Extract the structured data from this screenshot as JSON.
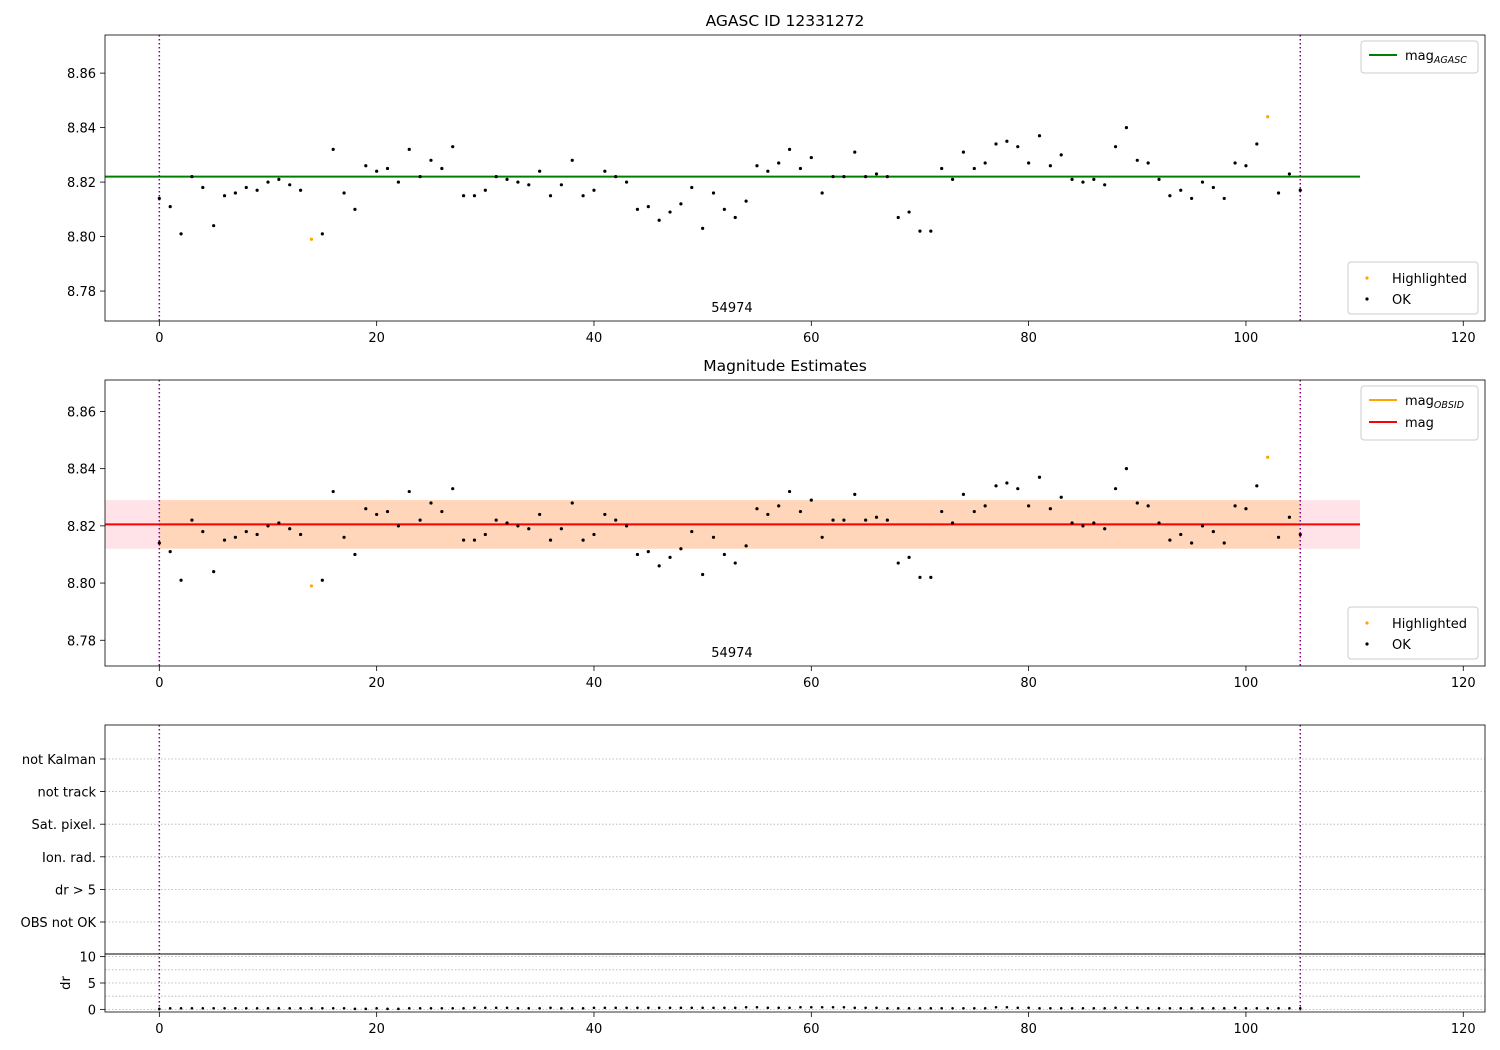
{
  "chart_data": [
    {
      "type": "scatter",
      "title": "AGASC ID 12331272",
      "xlim": [
        -5,
        122
      ],
      "ylim": [
        8.769,
        8.874
      ],
      "xticks": [
        0,
        20,
        40,
        60,
        80,
        100,
        120
      ],
      "yticks": [
        8.78,
        8.8,
        8.82,
        8.84,
        8.86
      ],
      "annotation": "54974",
      "obs_boundaries": [
        0,
        105
      ],
      "lines": [
        {
          "name_main": "mag",
          "name_sub": "AGASC",
          "y": 8.822,
          "x_range": [
            -5,
            110.5
          ],
          "color": "#008000"
        }
      ],
      "legend_points": [
        {
          "name": "Highlighted",
          "color": "#ffa500"
        },
        {
          "name": "OK",
          "color": "#000000"
        }
      ],
      "series": [
        {
          "name": "OK",
          "color": "#000000",
          "x": [
            0,
            1,
            2,
            3,
            4,
            5,
            6,
            7,
            8,
            9,
            10,
            11,
            12,
            13,
            15,
            16,
            17,
            18,
            19,
            20,
            21,
            22,
            23,
            24,
            25,
            26,
            27,
            28,
            29,
            30,
            31,
            32,
            33,
            34,
            35,
            36,
            37,
            38,
            39,
            40,
            41,
            42,
            43,
            44,
            45,
            46,
            47,
            48,
            49,
            50,
            51,
            52,
            53,
            54,
            55,
            56,
            57,
            58,
            59,
            60,
            61,
            62,
            63,
            64,
            65,
            66,
            67,
            68,
            69,
            70,
            71,
            72,
            73,
            74,
            75,
            76,
            77,
            78,
            79,
            80,
            81,
            82,
            83,
            84,
            85,
            86,
            87,
            88,
            89,
            90,
            91,
            92,
            93,
            94,
            95,
            96,
            97,
            98,
            99,
            100,
            101,
            103,
            104,
            105
          ],
          "y": [
            8.814,
            8.811,
            8.801,
            8.822,
            8.818,
            8.804,
            8.815,
            8.816,
            8.818,
            8.817,
            8.82,
            8.821,
            8.819,
            8.817,
            8.801,
            8.832,
            8.816,
            8.81,
            8.826,
            8.824,
            8.825,
            8.82,
            8.832,
            8.822,
            8.828,
            8.825,
            8.833,
            8.815,
            8.815,
            8.817,
            8.822,
            8.821,
            8.82,
            8.819,
            8.824,
            8.815,
            8.819,
            8.828,
            8.815,
            8.817,
            8.824,
            8.822,
            8.82,
            8.81,
            8.811,
            8.806,
            8.809,
            8.812,
            8.818,
            8.803,
            8.816,
            8.81,
            8.807,
            8.813,
            8.826,
            8.824,
            8.827,
            8.832,
            8.825,
            8.829,
            8.816,
            8.822,
            8.822,
            8.831,
            8.822,
            8.823,
            8.822,
            8.807,
            8.809,
            8.802,
            8.802,
            8.825,
            8.821,
            8.831,
            8.825,
            8.827,
            8.834,
            8.835,
            8.833,
            8.827,
            8.837,
            8.826,
            8.83,
            8.821,
            8.82,
            8.821,
            8.819,
            8.833,
            8.84,
            8.828,
            8.827,
            8.821,
            8.815,
            8.817,
            8.814,
            8.82,
            8.818,
            8.814,
            8.827,
            8.826,
            8.834,
            8.816,
            8.823,
            8.817
          ]
        },
        {
          "name": "Highlighted",
          "color": "#ffa500",
          "x": [
            14,
            102
          ],
          "y": [
            8.799,
            8.844
          ]
        }
      ]
    },
    {
      "type": "scatter",
      "title": "Magnitude Estimates",
      "xlim": [
        -5,
        122
      ],
      "ylim": [
        8.771,
        8.871
      ],
      "xticks": [
        0,
        20,
        40,
        60,
        80,
        100,
        120
      ],
      "yticks": [
        8.78,
        8.8,
        8.82,
        8.84,
        8.86
      ],
      "annotation": "54974",
      "obs_boundaries": [
        0,
        105
      ],
      "bands": [
        {
          "y0": 8.812,
          "y1": 8.829,
          "x_range": [
            -5,
            110.5
          ],
          "color": "#ffc0cb",
          "opacity": 0.45
        },
        {
          "y0": 8.812,
          "y1": 8.829,
          "x_range": [
            0,
            105
          ],
          "color": "#ffa500",
          "opacity": 0.2
        }
      ],
      "lines": [
        {
          "name_main": "mag",
          "name_sub": "OBSID",
          "y": 8.8205,
          "x_range": [
            0,
            105
          ],
          "color": "#ffa500"
        },
        {
          "name_main": "mag",
          "name_sub": "",
          "y": 8.8205,
          "x_range": [
            -5,
            110.5
          ],
          "color": "#ff0000"
        }
      ],
      "legend_points": [
        {
          "name": "Highlighted",
          "color": "#ffa500"
        },
        {
          "name": "OK",
          "color": "#000000"
        }
      ],
      "series": [
        {
          "name": "OK",
          "color": "#000000",
          "x": [
            0,
            1,
            2,
            3,
            4,
            5,
            6,
            7,
            8,
            9,
            10,
            11,
            12,
            13,
            15,
            16,
            17,
            18,
            19,
            20,
            21,
            22,
            23,
            24,
            25,
            26,
            27,
            28,
            29,
            30,
            31,
            32,
            33,
            34,
            35,
            36,
            37,
            38,
            39,
            40,
            41,
            42,
            43,
            44,
            45,
            46,
            47,
            48,
            49,
            50,
            51,
            52,
            53,
            54,
            55,
            56,
            57,
            58,
            59,
            60,
            61,
            62,
            63,
            64,
            65,
            66,
            67,
            68,
            69,
            70,
            71,
            72,
            73,
            74,
            75,
            76,
            77,
            78,
            79,
            80,
            81,
            82,
            83,
            84,
            85,
            86,
            87,
            88,
            89,
            90,
            91,
            92,
            93,
            94,
            95,
            96,
            97,
            98,
            99,
            100,
            101,
            103,
            104,
            105
          ],
          "y": [
            8.814,
            8.811,
            8.801,
            8.822,
            8.818,
            8.804,
            8.815,
            8.816,
            8.818,
            8.817,
            8.82,
            8.821,
            8.819,
            8.817,
            8.801,
            8.832,
            8.816,
            8.81,
            8.826,
            8.824,
            8.825,
            8.82,
            8.832,
            8.822,
            8.828,
            8.825,
            8.833,
            8.815,
            8.815,
            8.817,
            8.822,
            8.821,
            8.82,
            8.819,
            8.824,
            8.815,
            8.819,
            8.828,
            8.815,
            8.817,
            8.824,
            8.822,
            8.82,
            8.81,
            8.811,
            8.806,
            8.809,
            8.812,
            8.818,
            8.803,
            8.816,
            8.81,
            8.807,
            8.813,
            8.826,
            8.824,
            8.827,
            8.832,
            8.825,
            8.829,
            8.816,
            8.822,
            8.822,
            8.831,
            8.822,
            8.823,
            8.822,
            8.807,
            8.809,
            8.802,
            8.802,
            8.825,
            8.821,
            8.831,
            8.825,
            8.827,
            8.834,
            8.835,
            8.833,
            8.827,
            8.837,
            8.826,
            8.83,
            8.821,
            8.82,
            8.821,
            8.819,
            8.833,
            8.84,
            8.828,
            8.827,
            8.821,
            8.815,
            8.817,
            8.814,
            8.82,
            8.818,
            8.814,
            8.827,
            8.826,
            8.834,
            8.816,
            8.823,
            8.817
          ]
        },
        {
          "name": "Highlighted",
          "color": "#ffa500",
          "x": [
            14,
            102
          ],
          "y": [
            8.799,
            8.844
          ]
        }
      ]
    },
    {
      "type": "scatter",
      "title": "",
      "xlim": [
        -5,
        122
      ],
      "categories": [
        "OBS not OK",
        "dr > 5",
        "Ion. rad.",
        "Sat. pixel.",
        "not track",
        "not Kalman"
      ],
      "obs_boundaries": [
        0,
        105
      ],
      "flags": [],
      "sub_panel": {
        "ylabel": "dr",
        "ylim": [
          -0.5,
          10.5
        ],
        "yticks": [
          0,
          5,
          10
        ],
        "xticks": [
          0,
          20,
          40,
          60,
          80,
          100,
          120
        ],
        "x": [
          0,
          1,
          2,
          3,
          4,
          5,
          6,
          7,
          8,
          9,
          10,
          11,
          12,
          13,
          14,
          15,
          16,
          17,
          18,
          19,
          20,
          21,
          22,
          23,
          24,
          25,
          26,
          27,
          28,
          29,
          30,
          31,
          32,
          33,
          34,
          35,
          36,
          37,
          38,
          39,
          40,
          41,
          42,
          43,
          44,
          45,
          46,
          47,
          48,
          49,
          50,
          51,
          52,
          53,
          54,
          55,
          56,
          57,
          58,
          59,
          60,
          61,
          62,
          63,
          64,
          65,
          66,
          67,
          68,
          69,
          70,
          71,
          72,
          73,
          74,
          75,
          76,
          77,
          78,
          79,
          80,
          81,
          82,
          83,
          84,
          85,
          86,
          87,
          88,
          89,
          90,
          91,
          92,
          93,
          94,
          95,
          96,
          97,
          98,
          99,
          100,
          101,
          102,
          103,
          104,
          105
        ],
        "y": [
          0.1,
          0.2,
          0.2,
          0.2,
          0.2,
          0.2,
          0.2,
          0.2,
          0.2,
          0.2,
          0.2,
          0.2,
          0.2,
          0.2,
          0.2,
          0.2,
          0.2,
          0.2,
          0.1,
          0.1,
          0.2,
          0.1,
          0.1,
          0.2,
          0.2,
          0.2,
          0.2,
          0.2,
          0.2,
          0.3,
          0.3,
          0.3,
          0.3,
          0.2,
          0.2,
          0.2,
          0.3,
          0.2,
          0.2,
          0.2,
          0.3,
          0.3,
          0.3,
          0.3,
          0.3,
          0.3,
          0.3,
          0.3,
          0.3,
          0.3,
          0.3,
          0.3,
          0.3,
          0.3,
          0.4,
          0.4,
          0.3,
          0.3,
          0.3,
          0.4,
          0.4,
          0.4,
          0.4,
          0.4,
          0.3,
          0.3,
          0.3,
          0.2,
          0.2,
          0.2,
          0.2,
          0.2,
          0.2,
          0.2,
          0.2,
          0.2,
          0.2,
          0.4,
          0.4,
          0.3,
          0.3,
          0.2,
          0.2,
          0.2,
          0.2,
          0.2,
          0.2,
          0.2,
          0.3,
          0.3,
          0.3,
          0.2,
          0.2,
          0.2,
          0.2,
          0.2,
          0.2,
          0.2,
          0.2,
          0.3,
          0.2,
          0.2,
          0.2,
          0.2,
          0.2,
          0.2
        ],
        "color": "#000000"
      }
    }
  ]
}
